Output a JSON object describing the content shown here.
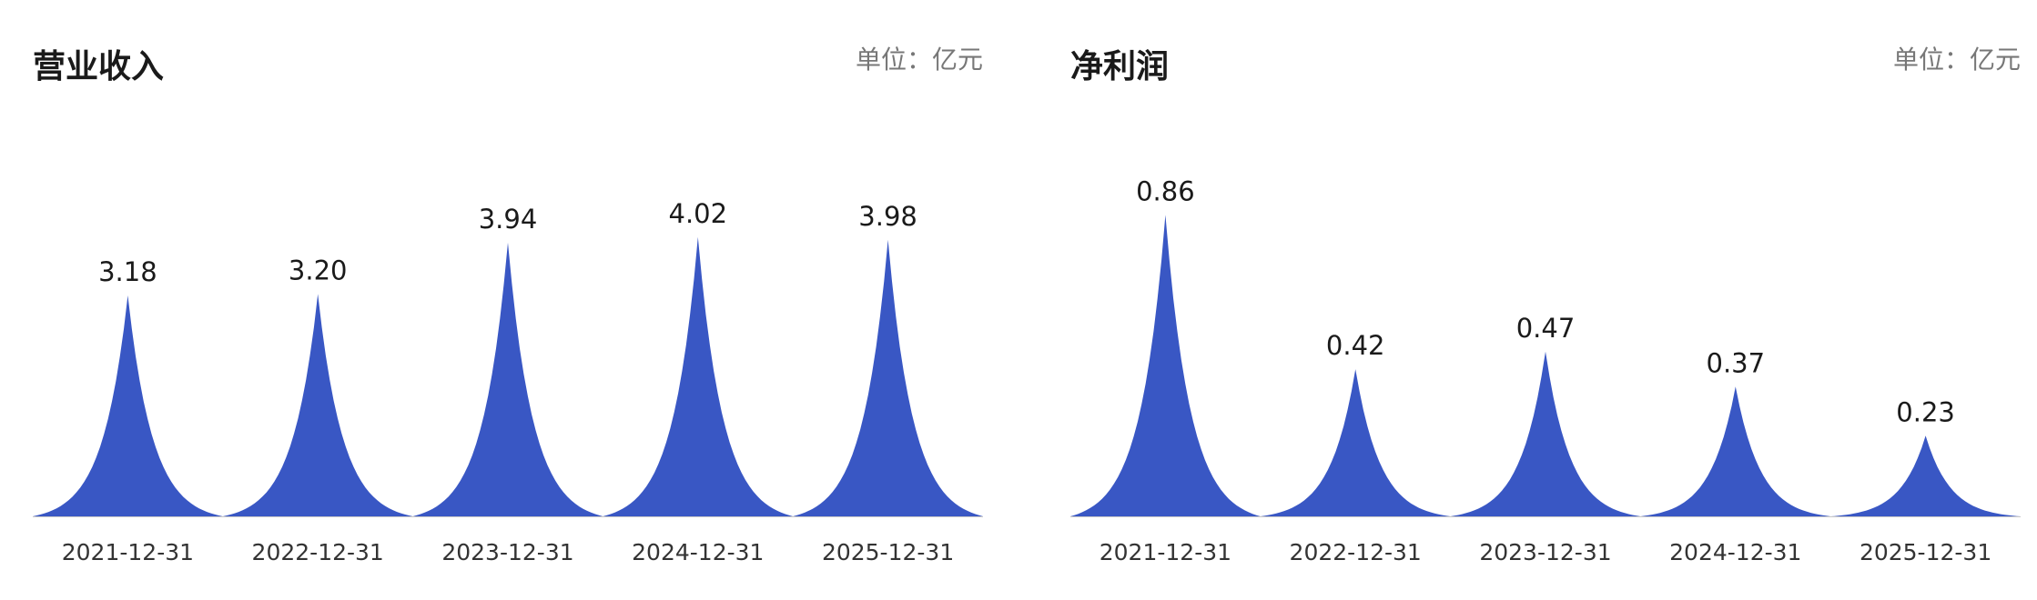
{
  "colors": {
    "peak_fill": "#3957c4",
    "axis_line": "#c8c8c8"
  },
  "chart_data": [
    {
      "type": "area",
      "title": "营业收入",
      "unit_label": "单位：",
      "unit": "亿元",
      "categories": [
        "2021-12-31",
        "2022-12-31",
        "2023-12-31",
        "2024-12-31",
        "2025-12-31"
      ],
      "values": [
        3.18,
        3.2,
        3.94,
        4.02,
        3.98
      ],
      "value_labels": [
        "3.18",
        "3.20",
        "3.94",
        "4.02",
        "3.98"
      ],
      "ylim": [
        0,
        5.6
      ],
      "grid": false,
      "legend": "none"
    },
    {
      "type": "area",
      "title": "净利润",
      "unit_label": "单位：",
      "unit": "亿元",
      "categories": [
        "2021-12-31",
        "2022-12-31",
        "2023-12-31",
        "2024-12-31",
        "2025-12-31"
      ],
      "values": [
        0.86,
        0.42,
        0.47,
        0.37,
        0.23
      ],
      "value_labels": [
        "0.86",
        "0.42",
        "0.47",
        "0.37",
        "0.23"
      ],
      "ylim": [
        0,
        1.11
      ],
      "grid": false,
      "legend": "none"
    }
  ]
}
